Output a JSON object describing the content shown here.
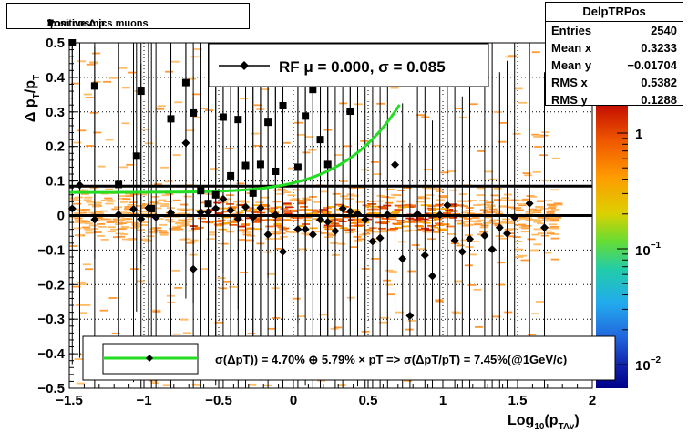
{
  "title": {
    "pre": "Positive Δ p",
    "sub1": "T",
    "mid": "/p",
    "sub2": "T",
    "post": " from cosmics muons"
  },
  "stats": {
    "name": "DelpTRPos",
    "rows": [
      {
        "key": "Entries",
        "value": "2540"
      },
      {
        "key": "Mean x",
        "value": "0.3233"
      },
      {
        "key": "Mean y",
        "value": "−0.01704"
      },
      {
        "key": "RMS x",
        "value": "0.5382"
      },
      {
        "key": "RMS y",
        "value": "0.1288"
      }
    ]
  },
  "legend_top": {
    "text": "RF μ =  0.000, σ =   0.085"
  },
  "legend_bottom": {
    "text": "σ(ΔpT)) =  4.70% ⊕  5.79% × pT => σ(ΔpT/pT) =  7.45%(@1GeV/c)"
  },
  "colors": {
    "fit_curve": "#22dd22",
    "marker": "#000000",
    "palette_high": "#cc1100",
    "palette_low": "#000088"
  },
  "chart_data": {
    "type": "scatter",
    "xlabel": {
      "pre": "Log",
      "sub1": "10",
      "mid": "(p",
      "sub2": "TAv",
      "post": ")"
    },
    "ylabel": {
      "pre": "Δ p",
      "sub1": "T",
      "mid": "/p",
      "sub2": "T"
    },
    "xlim": [
      -1.5,
      2
    ],
    "ylim": [
      -0.5,
      0.5
    ],
    "x_ticks": [
      -1.5,
      -1,
      -0.5,
      0,
      0.5,
      1,
      1.5,
      2
    ],
    "x_tick_labels": [
      "−1.5",
      "−1",
      "−0.5",
      "0",
      "0.5",
      "1",
      "1.5",
      "2"
    ],
    "y_ticks": [
      -0.5,
      -0.4,
      -0.3,
      -0.2,
      -0.1,
      0,
      0.1,
      0.2,
      0.3,
      0.4,
      0.5
    ],
    "y_tick_labels": [
      "−0.5",
      "−0.4",
      "−0.3",
      "−0.2",
      "−0.1",
      "0",
      "0.1",
      "0.2",
      "0.3",
      "0.4",
      "0.5"
    ],
    "grid": true,
    "colorbar": {
      "scale": "log",
      "tick_labels": [
        "1",
        "10⁻¹",
        "10⁻²"
      ],
      "tick_values": [
        1,
        0.1,
        0.01
      ]
    },
    "hlines": [
      0,
      0.085
    ],
    "square_points": [
      {
        "x": -1.48,
        "y": 0.5
      },
      {
        "x": -1.33,
        "y": 0.375
      },
      {
        "x": -1.17,
        "y": 0.09
      },
      {
        "x": -1.05,
        "y": 0.172
      },
      {
        "x": -1.02,
        "y": 0.36
      },
      {
        "x": -0.95,
        "y": 0.02
      },
      {
        "x": -0.82,
        "y": 0.28
      },
      {
        "x": -0.72,
        "y": 0.385
      },
      {
        "x": -0.67,
        "y": 0.297
      },
      {
        "x": -0.62,
        "y": 0.072
      },
      {
        "x": -0.57,
        "y": 0.035
      },
      {
        "x": -0.52,
        "y": 0.06
      },
      {
        "x": -0.47,
        "y": 0.285
      },
      {
        "x": -0.42,
        "y": 0.115
      },
      {
        "x": -0.37,
        "y": 0.278
      },
      {
        "x": -0.32,
        "y": 0.145
      },
      {
        "x": -0.27,
        "y": 0.065
      },
      {
        "x": -0.22,
        "y": 0.148
      },
      {
        "x": -0.17,
        "y": 0.27
      },
      {
        "x": -0.12,
        "y": 0.128
      },
      {
        "x": -0.07,
        "y": 0.318
      },
      {
        "x": 0.03,
        "y": 0.14
      },
      {
        "x": 0.08,
        "y": 0.288
      },
      {
        "x": 0.13,
        "y": 0.365
      },
      {
        "x": 0.18,
        "y": 0.22
      },
      {
        "x": 0.23,
        "y": 0.148
      },
      {
        "x": 0.38,
        "y": 0.302
      }
    ],
    "diamond_points": [
      {
        "x": -1.48,
        "y": 0.02
      },
      {
        "x": -1.43,
        "y": 0.088
      },
      {
        "x": -1.33,
        "y": -0.012
      },
      {
        "x": -1.17,
        "y": 0.003
      },
      {
        "x": -1.07,
        "y": 0.018
      },
      {
        "x": -1.02,
        "y": -0.01
      },
      {
        "x": -0.97,
        "y": 0.022
      },
      {
        "x": -0.92,
        "y": -0.005
      },
      {
        "x": -0.82,
        "y": 0.008
      },
      {
        "x": -0.72,
        "y": 0.21
      },
      {
        "x": -0.67,
        "y": -0.155
      },
      {
        "x": -0.62,
        "y": 0.01
      },
      {
        "x": -0.57,
        "y": 0.01
      },
      {
        "x": -0.52,
        "y": 0.02
      },
      {
        "x": -0.47,
        "y": 0.048
      },
      {
        "x": -0.42,
        "y": 0.015
      },
      {
        "x": -0.37,
        "y": -0.01
      },
      {
        "x": -0.32,
        "y": 0.025
      },
      {
        "x": -0.27,
        "y": -0.005
      },
      {
        "x": -0.22,
        "y": 0.022
      },
      {
        "x": -0.17,
        "y": -0.055
      },
      {
        "x": -0.12,
        "y": 0.002
      },
      {
        "x": -0.07,
        "y": -0.105
      },
      {
        "x": 0.03,
        "y": -0.04
      },
      {
        "x": 0.08,
        "y": -0.04
      },
      {
        "x": 0.13,
        "y": -0.055
      },
      {
        "x": 0.18,
        "y": -0.012
      },
      {
        "x": 0.23,
        "y": -0.018
      },
      {
        "x": 0.28,
        "y": -0.045
      },
      {
        "x": 0.33,
        "y": 0.02
      },
      {
        "x": 0.38,
        "y": 0.012
      },
      {
        "x": 0.43,
        "y": 0.005
      },
      {
        "x": 0.48,
        "y": -0.012
      },
      {
        "x": 0.53,
        "y": -0.075
      },
      {
        "x": 0.58,
        "y": -0.065
      },
      {
        "x": 0.63,
        "y": 0.003
      },
      {
        "x": 0.68,
        "y": 0.147
      },
      {
        "x": 0.73,
        "y": -0.125
      },
      {
        "x": 0.78,
        "y": -0.29
      },
      {
        "x": 0.83,
        "y": 0.005
      },
      {
        "x": 0.88,
        "y": -0.115
      },
      {
        "x": 0.93,
        "y": -0.175
      },
      {
        "x": 0.98,
        "y": 0.002
      },
      {
        "x": 1.03,
        "y": 0.03
      },
      {
        "x": 1.08,
        "y": -0.072
      },
      {
        "x": 1.13,
        "y": -0.105
      },
      {
        "x": 1.18,
        "y": -0.068
      },
      {
        "x": 1.28,
        "y": -0.058
      },
      {
        "x": 1.33,
        "y": -0.098
      },
      {
        "x": 1.38,
        "y": -0.035
      },
      {
        "x": 1.43,
        "y": -0.052
      },
      {
        "x": 1.48,
        "y": -0.005
      },
      {
        "x": 1.58,
        "y": 0.035
      },
      {
        "x": 1.68,
        "y": -0.035
      }
    ],
    "fit_curve": {
      "sigma_const_pct": 4.7,
      "sigma_linear_pct": 5.79
    }
  }
}
